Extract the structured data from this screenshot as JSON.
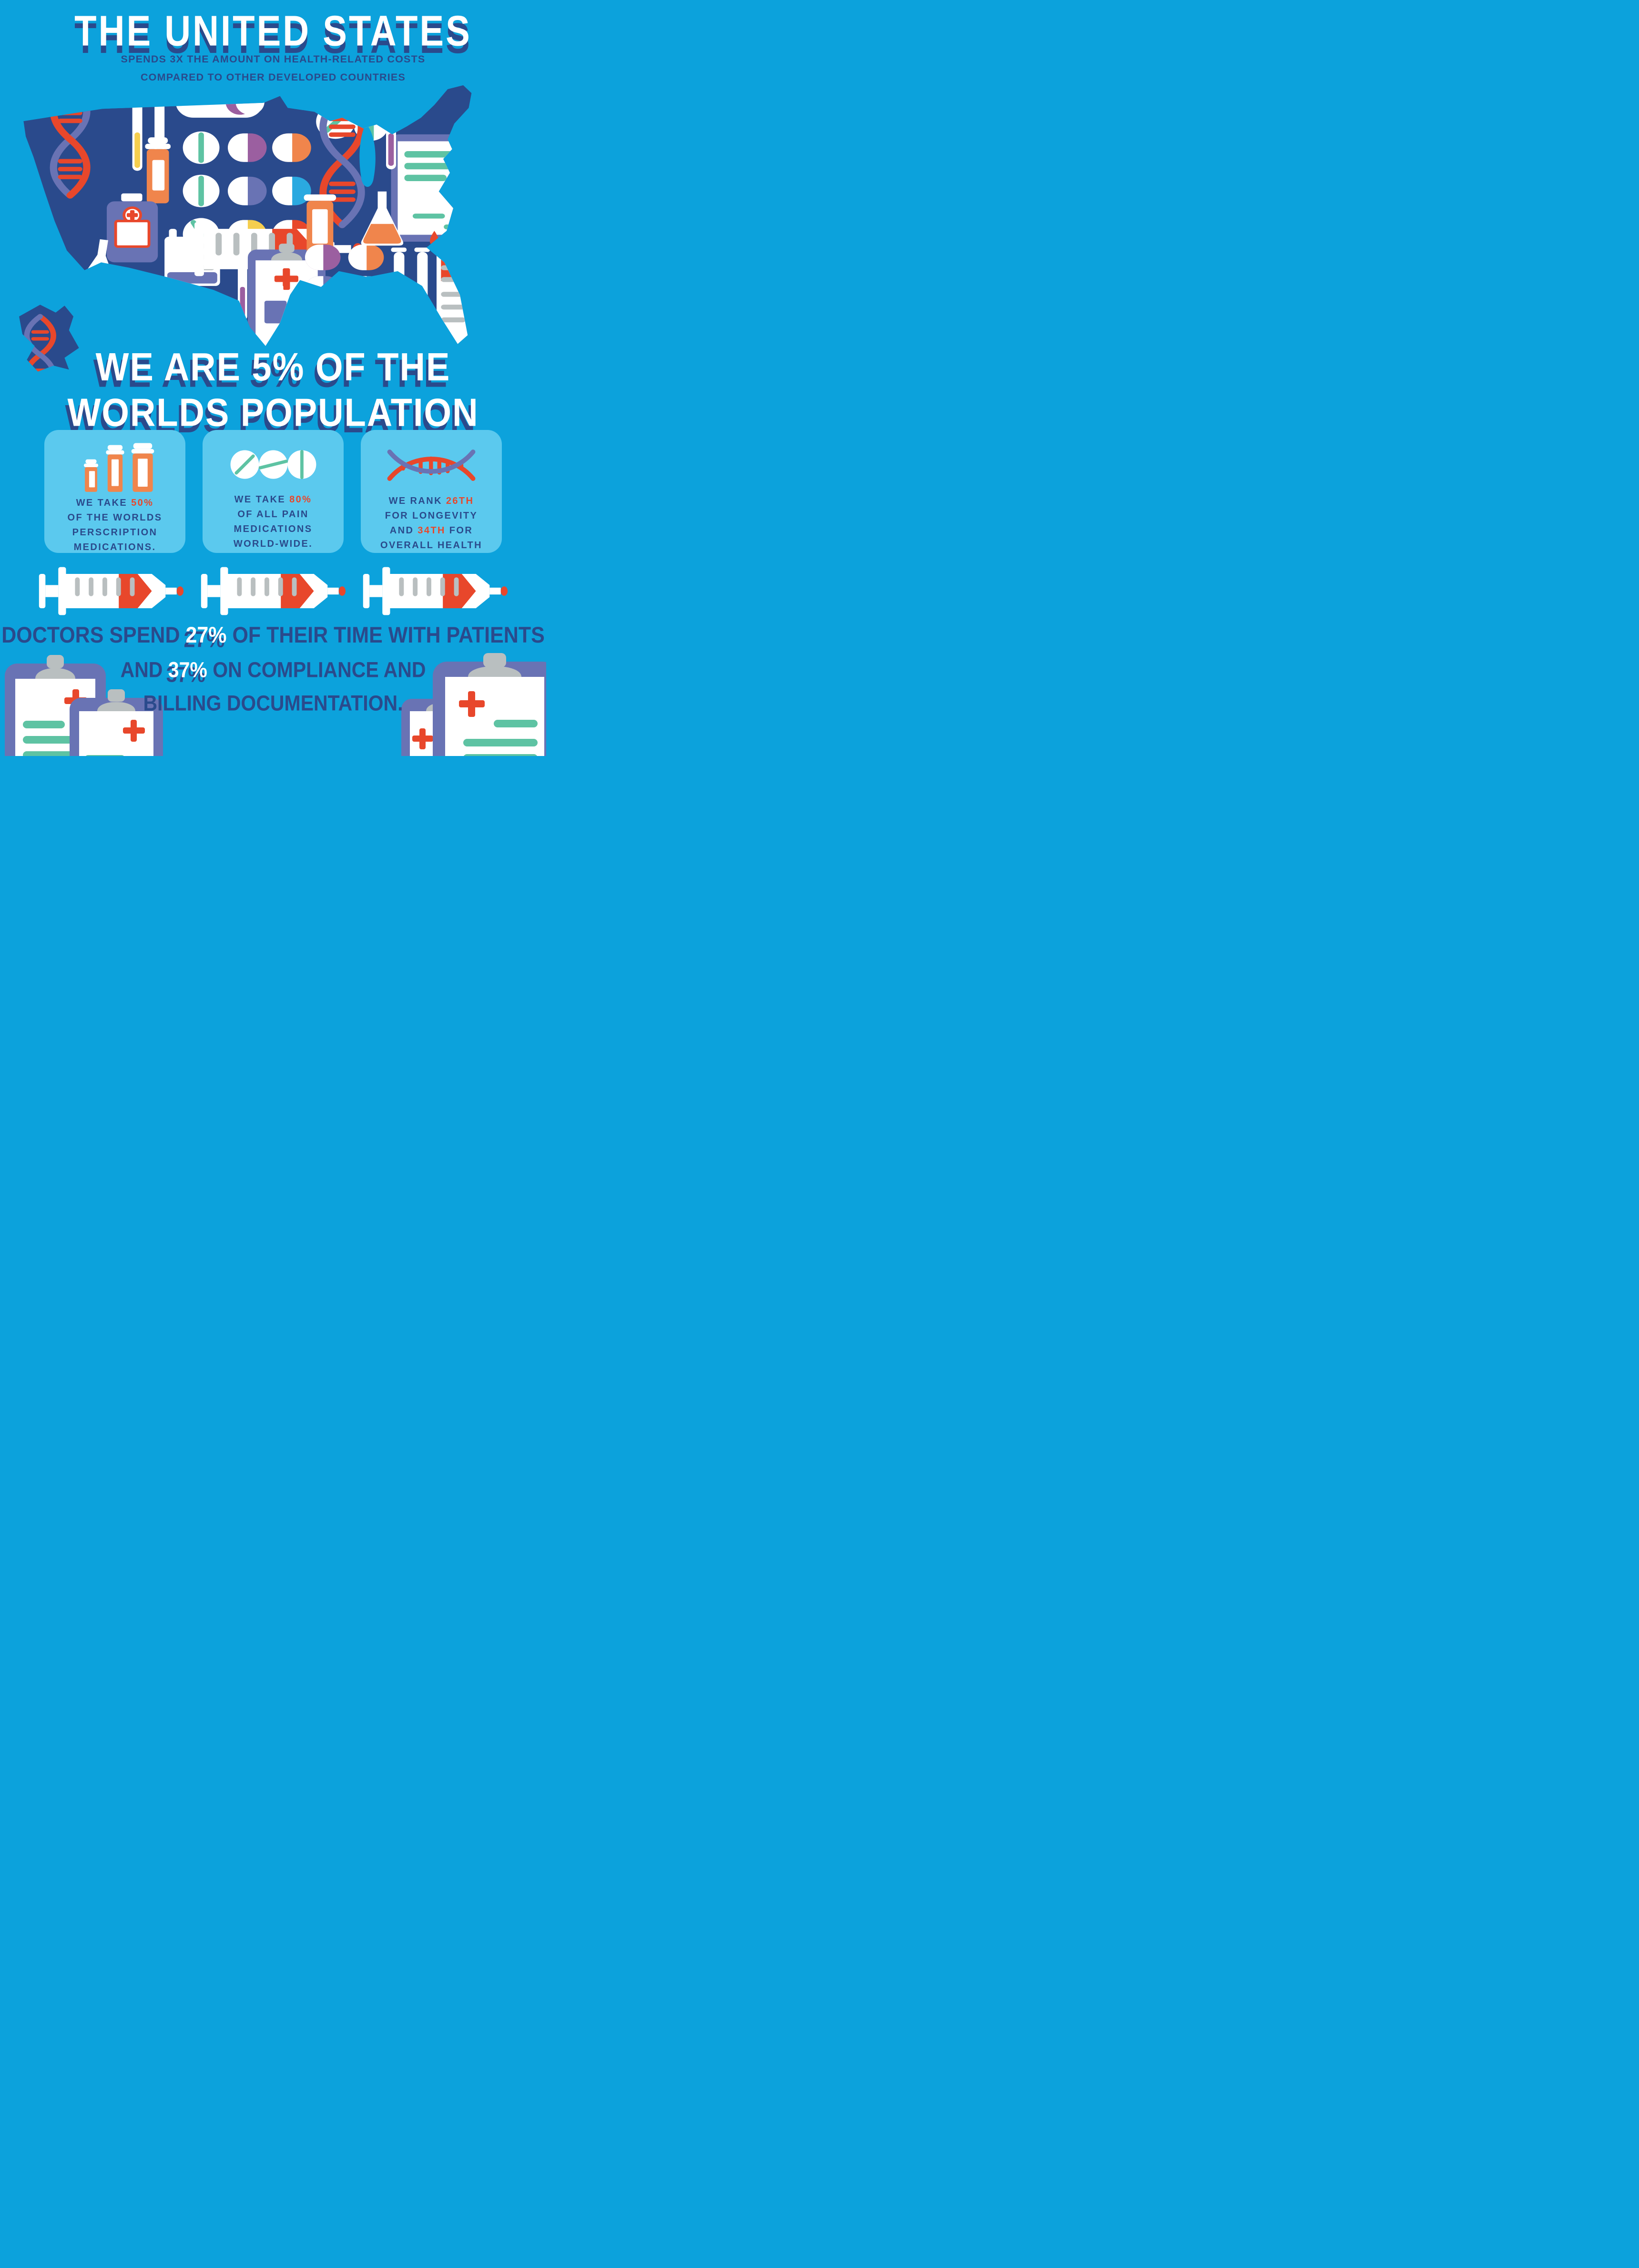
{
  "palette": {
    "background": "#0ca2dc",
    "navy": "#2a4a8c",
    "card_background": "#5bc9ee",
    "red": "#e8472b",
    "orange": "#f0854c",
    "green": "#5ec3a3",
    "slate_purple": "#6973b4",
    "gray": "#b9bfc0",
    "yellow": "#f5ce4e",
    "cyan": "#2aa9e0",
    "purple": "#9b5fa0",
    "white": "#ffffff"
  },
  "header": {
    "title": "THE UNITED STATES",
    "subtitle_line1": "SPENDS 3X THE AMOUNT ON HEALTH-RELATED COSTS",
    "subtitle_line2": "COMPARED TO OTHER DEVELOPED COUNTRIES"
  },
  "map": {
    "icons": [
      "dna-icon",
      "test-tube-icon",
      "pill-capsule-icon",
      "round-pill-icon",
      "prescription-bottle-icon",
      "medicine-bottle-icon",
      "flask-icon",
      "beaker-icon",
      "syringe-icon",
      "clipboard-icon",
      "medical-chart-icon",
      "blood-drop-icon"
    ]
  },
  "population_headline": {
    "line1": "WE ARE 5% OF THE",
    "line2": "WORLDS POPULATION"
  },
  "cards": [
    {
      "icon": "pill-bottles-icon",
      "lines": [
        [
          {
            "t": "WE TAKE ",
            "c": "navy"
          },
          {
            "t": "50%",
            "c": "red"
          }
        ],
        [
          {
            "t": "OF THE WORLDS",
            "c": "navy"
          }
        ],
        [
          {
            "t": "PERSCRIPTION",
            "c": "navy"
          }
        ],
        [
          {
            "t": "MEDICATIONS.",
            "c": "navy"
          }
        ]
      ]
    },
    {
      "icon": "pain-pills-icon",
      "lines": [
        [
          {
            "t": "WE TAKE ",
            "c": "navy"
          },
          {
            "t": "80%",
            "c": "red"
          }
        ],
        [
          {
            "t": "OF ALL PAIN",
            "c": "navy"
          }
        ],
        [
          {
            "t": "MEDICATIONS",
            "c": "navy"
          }
        ],
        [
          {
            "t": "WORLD-WIDE.",
            "c": "navy"
          }
        ]
      ]
    },
    {
      "icon": "dna-icon",
      "lines": [
        [
          {
            "t": "WE RANK ",
            "c": "navy"
          },
          {
            "t": "26TH",
            "c": "red"
          }
        ],
        [
          {
            "t": "FOR LONGEVITY",
            "c": "navy"
          }
        ],
        [
          {
            "t": "AND ",
            "c": "navy"
          },
          {
            "t": "34TH",
            "c": "red"
          },
          {
            "t": " FOR",
            "c": "navy"
          }
        ],
        [
          {
            "t": "OVERALL HEALTH",
            "c": "navy"
          }
        ]
      ]
    }
  ],
  "syringe_row": {
    "count": 3
  },
  "doctors_stat": {
    "line1": [
      {
        "t": "DOCTORS SPEND ",
        "c": "navy"
      },
      {
        "t": "27%",
        "c": "white"
      },
      {
        "t": " OF THEIR TIME WITH PATIENTS",
        "c": "navy"
      }
    ],
    "line2": [
      {
        "t": "AND ",
        "c": "navy"
      },
      {
        "t": "37%",
        "c": "white"
      },
      {
        "t": " ON COMPLIANCE AND",
        "c": "navy"
      }
    ],
    "line3": [
      {
        "t": "BILLING DOCUMENTATION.",
        "c": "navy"
      }
    ]
  }
}
